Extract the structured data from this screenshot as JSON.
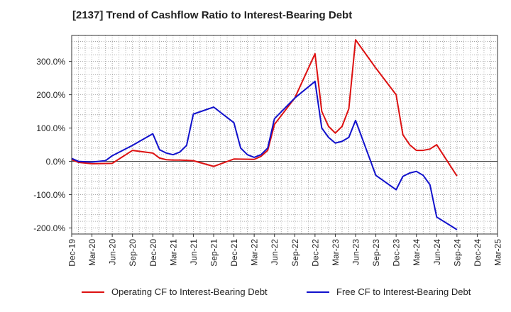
{
  "chart_data": {
    "type": "line",
    "title": "[2137]  Trend of Cashflow Ratio to Interest-Bearing Debt",
    "xlabel": "",
    "ylabel": "",
    "x_ticks": [
      "Dec-19",
      "Mar-20",
      "Jun-20",
      "Sep-20",
      "Dec-20",
      "Mar-21",
      "Jun-21",
      "Sep-21",
      "Dec-21",
      "Mar-22",
      "Jun-22",
      "Sep-22",
      "Dec-22",
      "Mar-23",
      "Jun-23",
      "Sep-23",
      "Dec-23",
      "Mar-24",
      "Jun-24",
      "Sep-24",
      "Dec-24",
      "Mar-25"
    ],
    "y_ticks": [
      "300.0%",
      "200.0%",
      "100.0%",
      "0.0%",
      "-100.0%",
      "-200.0%"
    ],
    "y_tick_values": [
      300,
      200,
      100,
      0,
      -100,
      -200
    ],
    "ylim": [
      -218,
      378
    ],
    "xlim": [
      "Dec-19",
      "Mar-25"
    ],
    "grid": true,
    "legend_position": "bottom",
    "series": [
      {
        "name": "Operating CF to Interest-Bearing Debt",
        "color": "#dd1111",
        "points": [
          [
            "Dec-19",
            5
          ],
          [
            "Jan-20",
            -3
          ],
          [
            "Mar-20",
            -7
          ],
          [
            "Jun-20",
            -6
          ],
          [
            "Sep-20",
            33
          ],
          [
            "Dec-20",
            25
          ],
          [
            "Jan-21",
            10
          ],
          [
            "Feb-21",
            5
          ],
          [
            "Mar-21",
            4
          ],
          [
            "Apr-21",
            4
          ],
          [
            "May-21",
            3
          ],
          [
            "Jun-21",
            2
          ],
          [
            "Sep-21",
            -15
          ],
          [
            "Dec-21",
            7
          ],
          [
            "Mar-22",
            6
          ],
          [
            "Apr-22",
            15
          ],
          [
            "May-22",
            33
          ],
          [
            "Jun-22",
            111
          ],
          [
            "Sep-22",
            190
          ],
          [
            "Dec-22",
            323
          ],
          [
            "Jan-23",
            150
          ],
          [
            "Feb-23",
            105
          ],
          [
            "Mar-23",
            85
          ],
          [
            "Apr-23",
            105
          ],
          [
            "May-23",
            158
          ],
          [
            "Jun-23",
            365
          ],
          [
            "Sep-23",
            280
          ],
          [
            "Dec-23",
            200
          ],
          [
            "Jan-24",
            80
          ],
          [
            "Feb-24",
            50
          ],
          [
            "Mar-24",
            33
          ],
          [
            "Apr-24",
            33
          ],
          [
            "May-24",
            37
          ],
          [
            "Jun-24",
            50
          ],
          [
            "Sep-24",
            -44
          ]
        ]
      },
      {
        "name": "Free CF to Interest-Bearing Debt",
        "color": "#1111cc",
        "points": [
          [
            "Dec-19",
            9
          ],
          [
            "Jan-20",
            0
          ],
          [
            "Mar-20",
            -2
          ],
          [
            "May-20",
            2
          ],
          [
            "Jun-20",
            17
          ],
          [
            "Sep-20",
            48
          ],
          [
            "Dec-20",
            83
          ],
          [
            "Jan-21",
            35
          ],
          [
            "Feb-21",
            25
          ],
          [
            "Mar-21",
            20
          ],
          [
            "Apr-21",
            28
          ],
          [
            "May-21",
            48
          ],
          [
            "Jun-21",
            142
          ],
          [
            "Sep-21",
            163
          ],
          [
            "Dec-21",
            116
          ],
          [
            "Jan-22",
            40
          ],
          [
            "Feb-22",
            20
          ],
          [
            "Mar-22",
            12
          ],
          [
            "Apr-22",
            20
          ],
          [
            "May-22",
            40
          ],
          [
            "Jun-22",
            128
          ],
          [
            "Sep-22",
            190
          ],
          [
            "Dec-22",
            240
          ],
          [
            "Jan-23",
            100
          ],
          [
            "Feb-23",
            72
          ],
          [
            "Mar-23",
            55
          ],
          [
            "Apr-23",
            60
          ],
          [
            "May-23",
            72
          ],
          [
            "Jun-23",
            123
          ],
          [
            "Sep-23",
            -42
          ],
          [
            "Dec-23",
            -85
          ],
          [
            "Jan-24",
            -45
          ],
          [
            "Feb-24",
            -35
          ],
          [
            "Mar-24",
            -30
          ],
          [
            "Apr-24",
            -42
          ],
          [
            "May-24",
            -70
          ],
          [
            "Jun-24",
            -167
          ],
          [
            "Sep-24",
            -205
          ]
        ]
      }
    ]
  }
}
